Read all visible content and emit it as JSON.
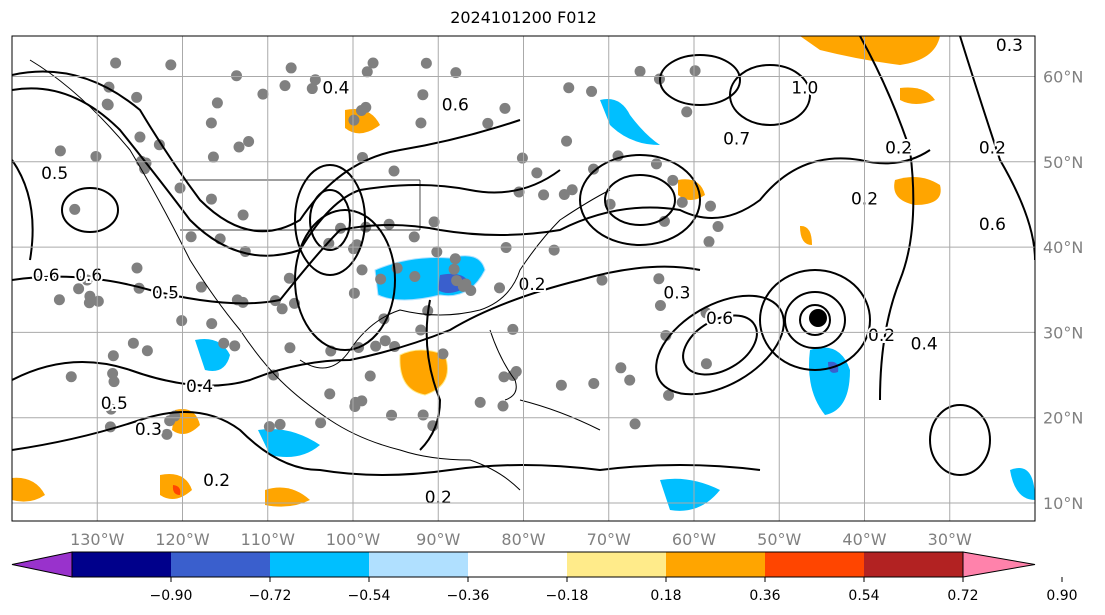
{
  "title": "2024101200 F012",
  "map": {
    "lon_range": [
      -140,
      -20
    ],
    "lat_range": [
      8,
      65
    ],
    "lon_labels": [
      {
        "lon": -130,
        "label": "130°W"
      },
      {
        "lon": -120,
        "label": "120°W"
      },
      {
        "lon": -110,
        "label": "110°W"
      },
      {
        "lon": -100,
        "label": "100°W"
      },
      {
        "lon": -90,
        "label": "90°W"
      },
      {
        "lon": -80,
        "label": "80°W"
      },
      {
        "lon": -70,
        "label": "70°W"
      },
      {
        "lon": -60,
        "label": "60°W"
      },
      {
        "lon": -50,
        "label": "50°W"
      },
      {
        "lon": -40,
        "label": "40°W"
      },
      {
        "lon": -30,
        "label": "30°W"
      }
    ],
    "lat_labels": [
      {
        "lat": 60,
        "label": "60°N"
      },
      {
        "lat": 50,
        "label": "50°N"
      },
      {
        "lat": 40,
        "label": "40°N"
      },
      {
        "lat": 30,
        "label": "30°N"
      },
      {
        "lat": 20,
        "label": "20°N"
      },
      {
        "lat": 10,
        "label": "10°N"
      }
    ],
    "contour_labels": [
      {
        "lon": -135,
        "lat": 48,
        "text": "0.5"
      },
      {
        "lon": -136,
        "lat": 36,
        "text": "0.6"
      },
      {
        "lon": -131,
        "lat": 36,
        "text": "0.6"
      },
      {
        "lon": -122,
        "lat": 34,
        "text": "0.5"
      },
      {
        "lon": -118,
        "lat": 23,
        "text": "0.4"
      },
      {
        "lon": -128,
        "lat": 21,
        "text": "0.5"
      },
      {
        "lon": -124,
        "lat": 18,
        "text": "0.3"
      },
      {
        "lon": -116,
        "lat": 12,
        "text": "0.2"
      },
      {
        "lon": -102,
        "lat": 58,
        "text": "0.4"
      },
      {
        "lon": -88,
        "lat": 56,
        "text": "0.6"
      },
      {
        "lon": -79,
        "lat": 35,
        "text": "0.2"
      },
      {
        "lon": -90,
        "lat": 10,
        "text": "0.2"
      },
      {
        "lon": -62,
        "lat": 34,
        "text": "0.3"
      },
      {
        "lon": -57,
        "lat": 31,
        "text": "0.6"
      },
      {
        "lon": -38,
        "lat": 29,
        "text": "0.2"
      },
      {
        "lon": -33,
        "lat": 28,
        "text": "0.4"
      },
      {
        "lon": -55,
        "lat": 52,
        "text": "0.7"
      },
      {
        "lon": -47,
        "lat": 58,
        "text": "1.0"
      },
      {
        "lon": -36,
        "lat": 51,
        "text": "0.2"
      },
      {
        "lon": -25,
        "lat": 51,
        "text": "0.2"
      },
      {
        "lon": -23,
        "lat": 63,
        "text": "0.3"
      },
      {
        "lon": -25,
        "lat": 42,
        "text": "0.6"
      },
      {
        "lon": -40,
        "lat": 45,
        "text": "0.2"
      }
    ]
  },
  "colorbar": {
    "colors": [
      "#9932cc",
      "#00008b",
      "#3a5fcd",
      "#00bfff",
      "#b0e0ff",
      "#ffffff",
      "#ffeb8a",
      "#ffa500",
      "#ff4500",
      "#b22222",
      "#ff82ab"
    ],
    "ticks": [
      "−0.90",
      "−0.72",
      "−0.54",
      "−0.36",
      "−0.18",
      "0.18",
      "0.36",
      "0.54",
      "0.72",
      "0.90"
    ]
  }
}
